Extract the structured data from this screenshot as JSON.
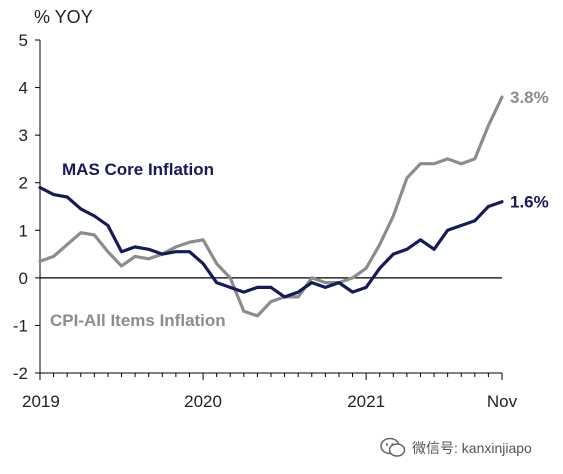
{
  "chart_data": {
    "type": "line",
    "title": "",
    "ylabel": "% YOY",
    "xlabel": "",
    "ylim": [
      -2,
      5
    ],
    "yticks": [
      -2,
      -1,
      0,
      1,
      2,
      3,
      4,
      5
    ],
    "xlim": [
      0,
      34
    ],
    "xticks": [
      {
        "x": 0,
        "label": "2019"
      },
      {
        "x": 12,
        "label": "2020"
      },
      {
        "x": 24,
        "label": "2021"
      },
      {
        "x": 34,
        "label": "Nov"
      }
    ],
    "grid": false,
    "zero_line": true,
    "series": [
      {
        "name": "MAS Core Inflation",
        "color": "#16195a",
        "end_label": "1.6%",
        "x": [
          0,
          1,
          2,
          3,
          4,
          5,
          6,
          7,
          8,
          9,
          10,
          11,
          12,
          13,
          14,
          15,
          16,
          17,
          18,
          19,
          20,
          21,
          22,
          23,
          24,
          25,
          26,
          27,
          28,
          29,
          30,
          31,
          32,
          33,
          34
        ],
        "values": [
          1.9,
          1.75,
          1.7,
          1.45,
          1.3,
          1.1,
          0.55,
          0.65,
          0.6,
          0.5,
          0.55,
          0.55,
          0.3,
          -0.1,
          -0.2,
          -0.3,
          -0.2,
          -0.2,
          -0.4,
          -0.3,
          -0.1,
          -0.2,
          -0.1,
          -0.3,
          -0.2,
          0.2,
          0.5,
          0.6,
          0.8,
          0.6,
          1.0,
          1.1,
          1.2,
          1.5,
          1.6
        ]
      },
      {
        "name": "CPI-All Items Inflation",
        "color": "#8c8c8c",
        "end_label": "3.8%",
        "x": [
          0,
          1,
          2,
          3,
          4,
          5,
          6,
          7,
          8,
          9,
          10,
          11,
          12,
          13,
          14,
          15,
          16,
          17,
          18,
          19,
          20,
          21,
          22,
          23,
          24,
          25,
          26,
          27,
          28,
          29,
          30,
          31,
          32,
          33,
          34
        ],
        "values": [
          0.35,
          0.45,
          0.7,
          0.95,
          0.9,
          0.55,
          0.25,
          0.45,
          0.4,
          0.5,
          0.65,
          0.75,
          0.8,
          0.3,
          0.0,
          -0.7,
          -0.8,
          -0.5,
          -0.4,
          -0.4,
          0.0,
          -0.1,
          -0.1,
          0.0,
          0.2,
          0.7,
          1.3,
          2.1,
          2.4,
          2.4,
          2.5,
          2.4,
          2.5,
          3.2,
          3.8
        ]
      }
    ]
  },
  "watermark": {
    "text": "微信号: kanxinjiapo",
    "icon": "wechat-icon"
  }
}
